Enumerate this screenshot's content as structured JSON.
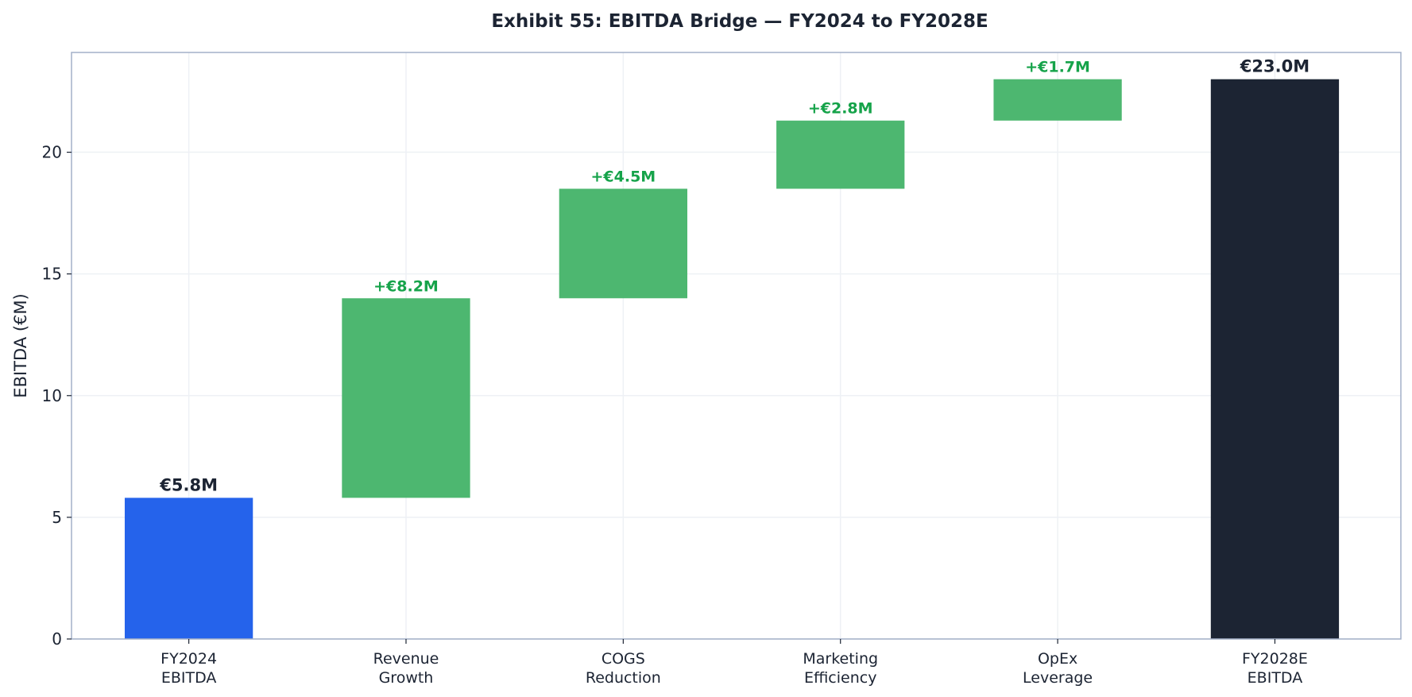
{
  "chart_data": {
    "type": "bar",
    "subtype": "waterfall",
    "title": "Exhibit 55: EBITDA Bridge — FY2024 to FY2028E",
    "xlabel": "",
    "ylabel": "EBITDA (€M)",
    "ylim": [
      0,
      24.1
    ],
    "yticks": [
      0,
      5,
      10,
      15,
      20
    ],
    "grid": true,
    "categories": [
      [
        "FY2024",
        "EBITDA"
      ],
      [
        "Revenue",
        "Growth"
      ],
      [
        "COGS",
        "Reduction"
      ],
      [
        "Marketing",
        "Efficiency"
      ],
      [
        "OpEx",
        "Leverage"
      ],
      [
        "FY2028E",
        "EBITDA"
      ]
    ],
    "bars": [
      {
        "kind": "total",
        "base": 0,
        "value": 5.8,
        "label": "€5.8M"
      },
      {
        "kind": "increase",
        "base": 5.8,
        "value": 8.2,
        "label": "+€8.2M"
      },
      {
        "kind": "increase",
        "base": 14.0,
        "value": 4.5,
        "label": "+€4.5M"
      },
      {
        "kind": "increase",
        "base": 18.5,
        "value": 2.8,
        "label": "+€2.8M"
      },
      {
        "kind": "increase",
        "base": 21.3,
        "value": 1.7,
        "label": "+€1.7M"
      },
      {
        "kind": "total-end",
        "base": 0,
        "value": 23.0,
        "label": "€23.0M"
      }
    ],
    "colors": {
      "start": "#2563eb",
      "increase": "#47b56b",
      "end": "#1c2433",
      "increase_label": "#16a34a",
      "total_label": "#1c2433",
      "axis": "#a3b0c8",
      "grid": "#eef1f5",
      "text": "#1c2433"
    }
  }
}
